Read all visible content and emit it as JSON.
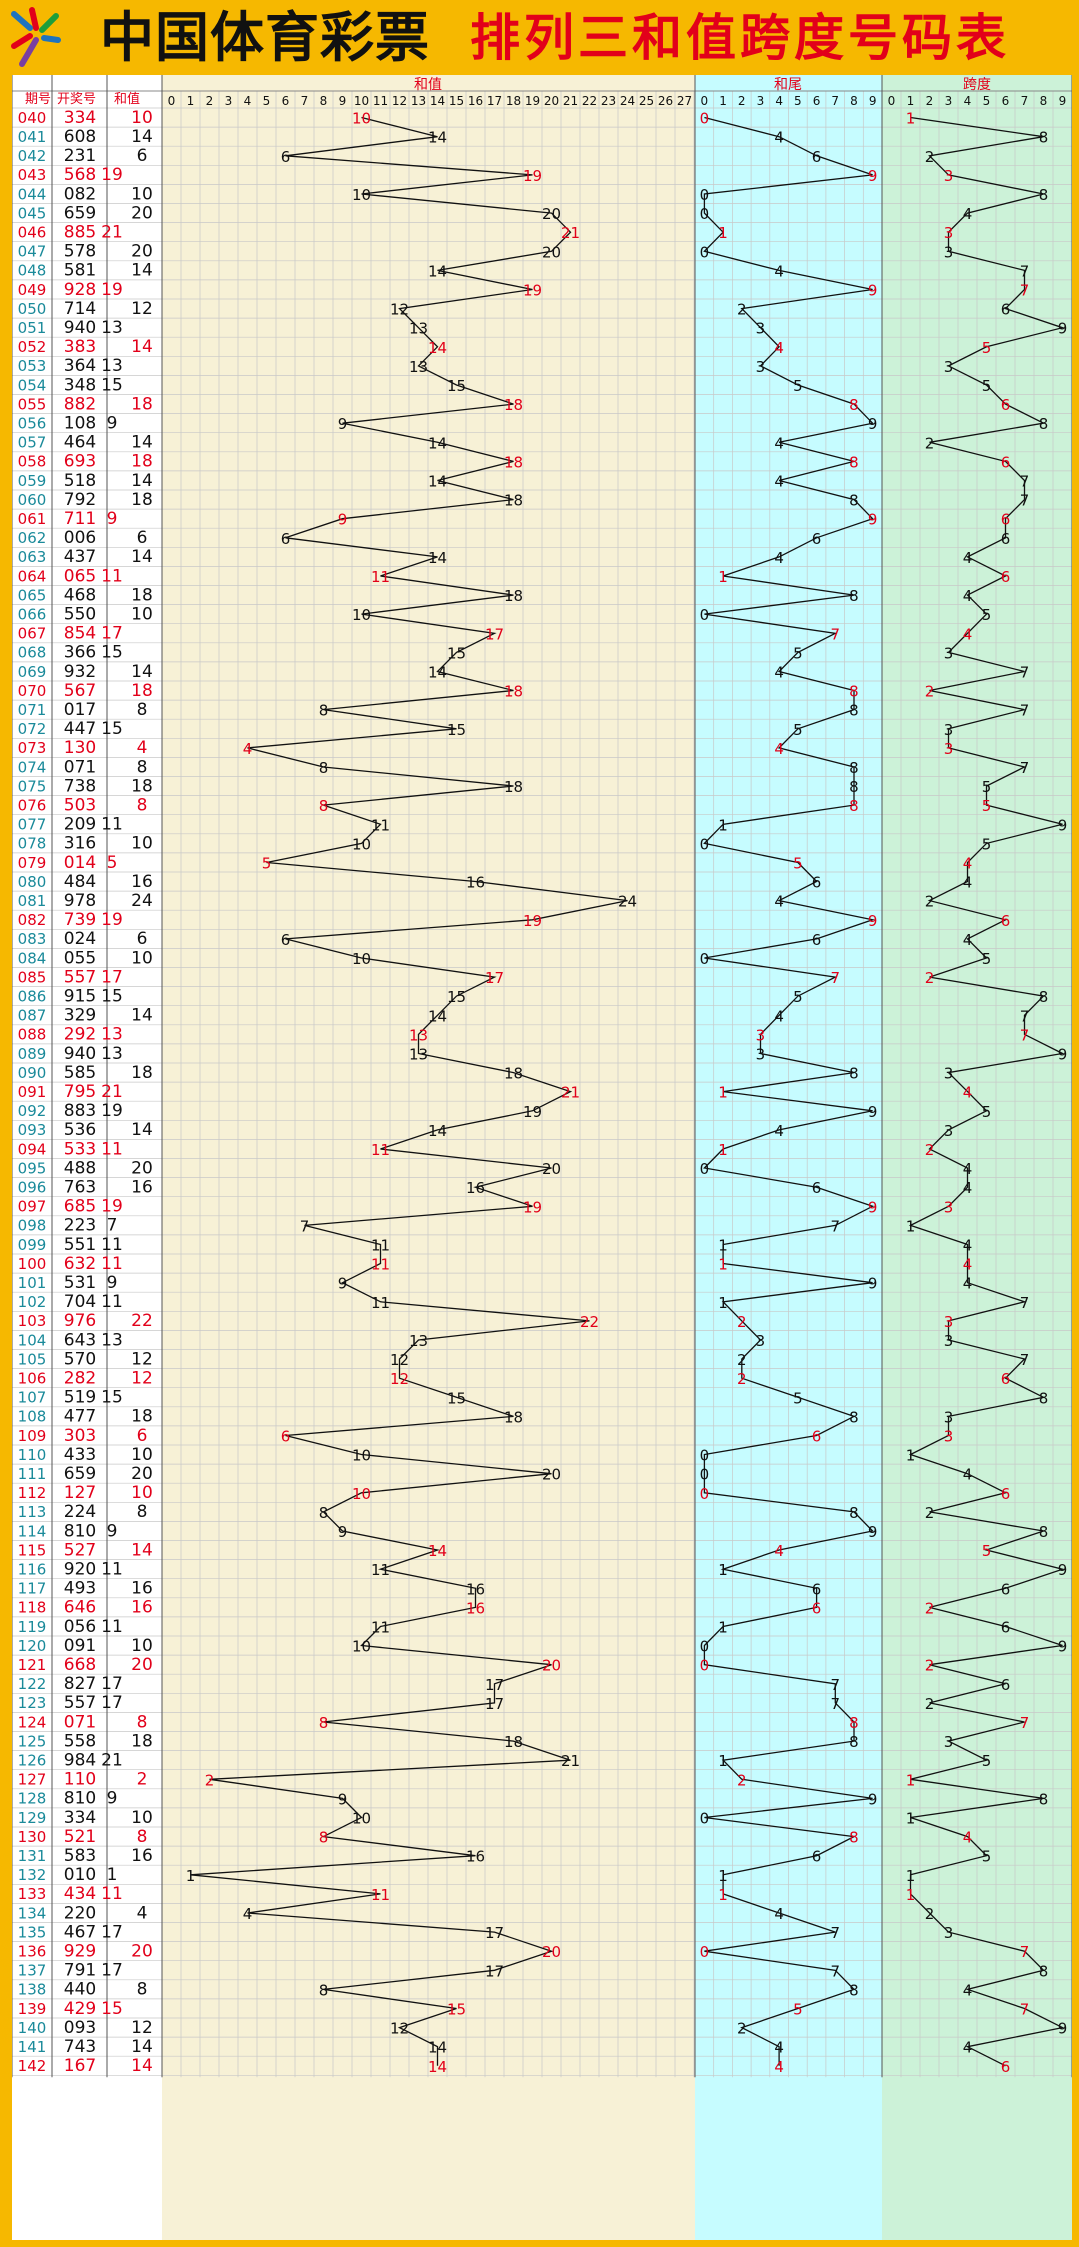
{
  "header": {
    "brand": "中国体育彩票",
    "title": "排列三和值跨度号码表"
  },
  "columns": {
    "issue": "期号",
    "number": "开奖号",
    "sum": "和值",
    "sum_area": "和值",
    "tail_area": "和尾",
    "span_area": "跨度"
  },
  "colors": {
    "red": "#e2001a",
    "black": "#111111",
    "issue": "#1a8a9a",
    "sum_bg": "#f7f1d6",
    "tail_bg": "#c6fcff",
    "span_bg": "#ccf2d8",
    "grid": "#c8c8c8",
    "frame": "#f6b800"
  },
  "chart_data": {
    "type": "table",
    "first_issue": 40,
    "numbers": [
      "334",
      "608",
      "231",
      "568",
      "082",
      "659",
      "885",
      "578",
      "581",
      "928",
      "714",
      "940",
      "383",
      "364",
      "348",
      "882",
      "108",
      "464",
      "693",
      "518",
      "792",
      "711",
      "006",
      "437",
      "065",
      "468",
      "550",
      "854",
      "366",
      "932",
      "567",
      "017",
      "447",
      "130",
      "071",
      "738",
      "503",
      "209",
      "316",
      "014",
      "484",
      "978",
      "739",
      "024",
      "055",
      "557",
      "915",
      "329",
      "292",
      "940",
      "585",
      "795",
      "883",
      "536",
      "533",
      "488",
      "763",
      "685",
      "223",
      "551",
      "632",
      "531",
      "704",
      "976",
      "643",
      "570",
      "282",
      "519",
      "477",
      "303",
      "433",
      "659",
      "127",
      "224",
      "810",
      "527",
      "920",
      "493",
      "646",
      "056",
      "091",
      "668",
      "827",
      "557",
      "071",
      "558",
      "984",
      "110",
      "810",
      "334",
      "521",
      "583",
      "010",
      "434",
      "220",
      "467",
      "929",
      "791",
      "440",
      "429",
      "093",
      "743",
      "167"
    ],
    "sum_axis": [
      0,
      27
    ],
    "tail_axis": [
      0,
      9
    ],
    "span_axis": [
      0,
      9
    ]
  }
}
